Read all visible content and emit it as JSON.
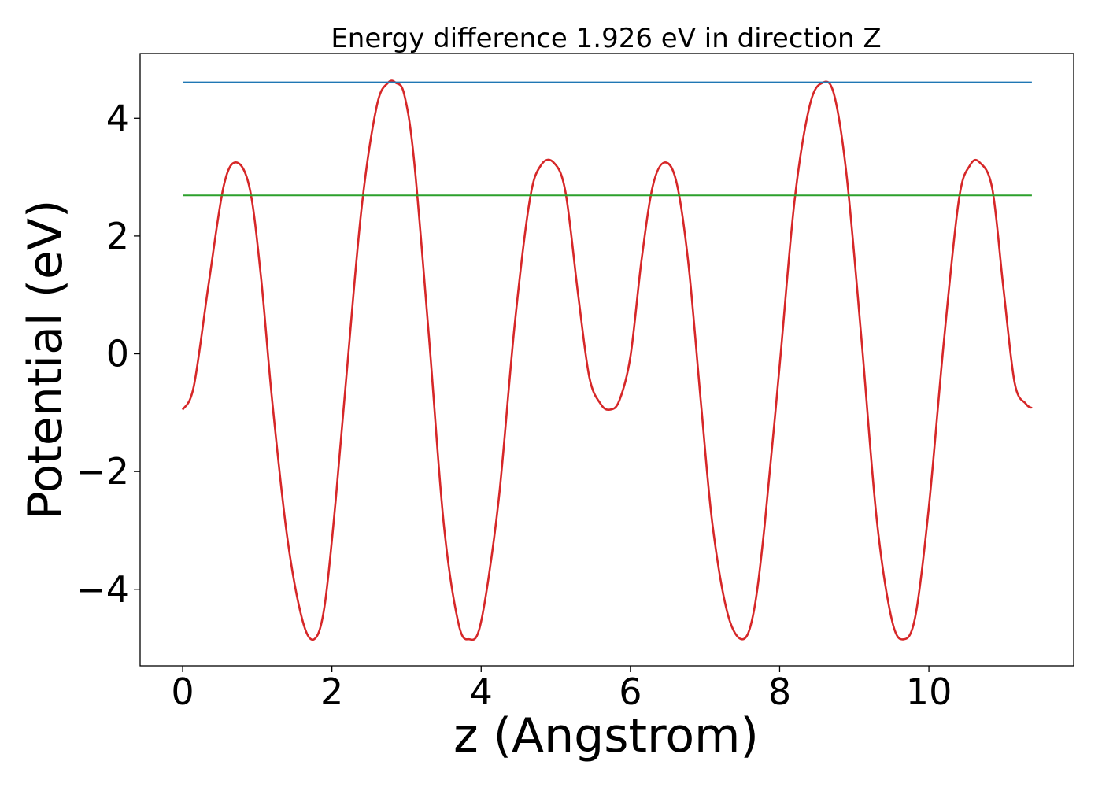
{
  "chart_data": {
    "type": "line",
    "title": "Energy difference 1.926 eV in direction Z",
    "xlabel": "z (Angstrom)",
    "ylabel": "Potential (eV)",
    "xlim": [
      -0.57,
      11.94
    ],
    "ylim": [
      -5.3,
      5.1
    ],
    "xticks": [
      0,
      2,
      4,
      6,
      8,
      10
    ],
    "yticks": [
      -4,
      -2,
      0,
      2,
      4
    ],
    "xtick_labels": [
      "0",
      "2",
      "4",
      "6",
      "8",
      "10"
    ],
    "ytick_labels": [
      "−4",
      "−2",
      "0",
      "2",
      "4"
    ],
    "grid": false,
    "legend": "none",
    "series": [
      {
        "color": "#d62728",
        "style": "curve",
        "x": [
          0.0,
          0.15,
          0.35,
          0.55,
          0.72,
          0.9,
          1.05,
          1.2,
          1.4,
          1.6,
          1.76,
          1.9,
          2.05,
          2.2,
          2.4,
          2.6,
          2.75,
          2.86,
          2.97,
          3.1,
          3.3,
          3.5,
          3.7,
          3.85,
          3.97,
          4.1,
          4.25,
          4.45,
          4.65,
          4.8,
          4.97,
          5.13,
          5.3,
          5.45,
          5.6,
          5.72,
          5.85,
          6.0,
          6.15,
          6.3,
          6.46,
          6.62,
          6.78,
          6.95,
          7.1,
          7.3,
          7.5,
          7.65,
          7.8,
          8.0,
          8.2,
          8.4,
          8.57,
          8.73,
          8.9,
          9.1,
          9.3,
          9.5,
          9.66,
          9.82,
          10.0,
          10.2,
          10.4,
          10.55,
          10.68,
          10.85,
          11.0,
          11.15,
          11.3,
          11.38
        ],
        "y": [
          -0.95,
          -0.55,
          1.2,
          2.85,
          3.25,
          2.8,
          1.3,
          -0.8,
          -3.1,
          -4.5,
          -4.85,
          -4.3,
          -2.5,
          -0.3,
          2.5,
          4.2,
          4.6,
          4.6,
          4.4,
          3.3,
          0.3,
          -2.9,
          -4.6,
          -4.85,
          -4.7,
          -3.8,
          -2.3,
          0.5,
          2.6,
          3.2,
          3.25,
          2.75,
          1.0,
          -0.4,
          -0.85,
          -0.95,
          -0.8,
          -0.05,
          1.6,
          2.85,
          3.25,
          2.9,
          1.5,
          -0.9,
          -2.9,
          -4.4,
          -4.85,
          -4.4,
          -2.9,
          -0.2,
          2.6,
          4.2,
          4.6,
          4.4,
          3.0,
          0.2,
          -2.8,
          -4.5,
          -4.85,
          -4.45,
          -2.6,
          0.2,
          2.6,
          3.2,
          3.25,
          2.8,
          1.1,
          -0.5,
          -0.85,
          -0.92
        ]
      },
      {
        "color": "#1f77b4",
        "style": "flat",
        "x": [
          0.0,
          11.38
        ],
        "y": [
          4.61,
          4.61
        ]
      },
      {
        "color": "#2ca02c",
        "style": "flat",
        "x": [
          0.0,
          11.38
        ],
        "y": [
          2.69,
          2.69
        ]
      }
    ]
  }
}
